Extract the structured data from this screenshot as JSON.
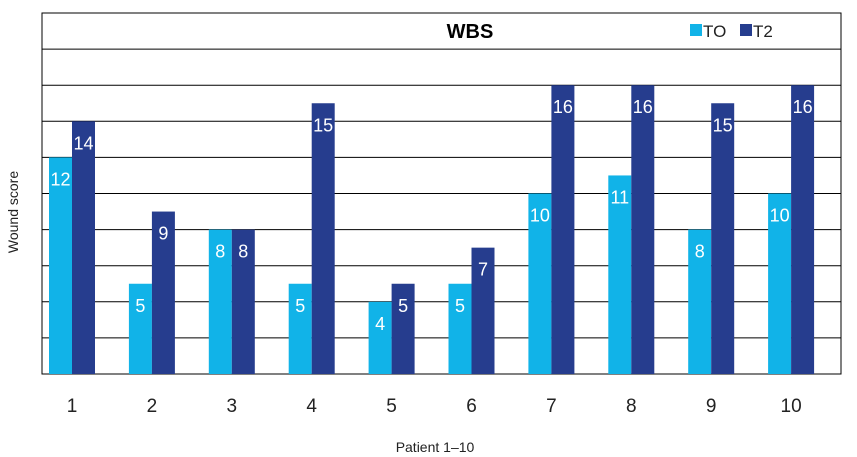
{
  "chart_data": {
    "type": "bar",
    "title": "WBS",
    "xlabel": "Patient 1–10",
    "ylabel": "Wound score",
    "categories": [
      "1",
      "2",
      "3",
      "4",
      "5",
      "6",
      "7",
      "8",
      "9",
      "10"
    ],
    "series": [
      {
        "name": "TO",
        "color": "#11b3e8",
        "values": [
          12,
          5,
          8,
          5,
          4,
          5,
          10,
          11,
          8,
          10
        ]
      },
      {
        "name": "T2",
        "color": "#263d8e",
        "values": [
          14,
          9,
          8,
          15,
          5,
          7,
          16,
          16,
          15,
          16
        ]
      }
    ],
    "ylim": [
      0,
      20
    ],
    "grid": true,
    "legend_position": "top-right"
  }
}
